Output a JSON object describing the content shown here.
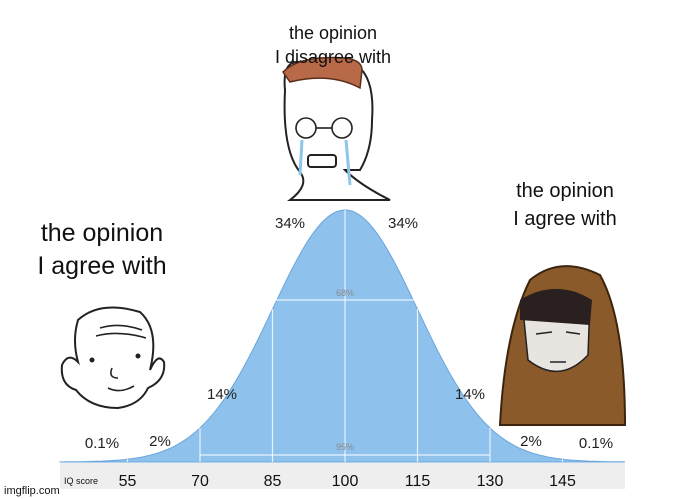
{
  "captions": {
    "top": [
      "the opinion",
      "I disagree with"
    ],
    "left": [
      "the opinion",
      "I agree with"
    ],
    "right": [
      "the opinion",
      "I agree with"
    ]
  },
  "curve": {
    "axis_title": "IQ score",
    "ticks": [
      "55",
      "70",
      "85",
      "100",
      "115",
      "130",
      "145"
    ],
    "band_labels": {
      "inner": [
        "34%",
        "34%"
      ],
      "middle": [
        "14%",
        "14%"
      ],
      "outer": [
        "2%",
        "2%"
      ],
      "tail": [
        "0.1%",
        "0.1%"
      ]
    },
    "range_labels": [
      "68%",
      "95%"
    ]
  },
  "watermark": "imgflip.com"
}
